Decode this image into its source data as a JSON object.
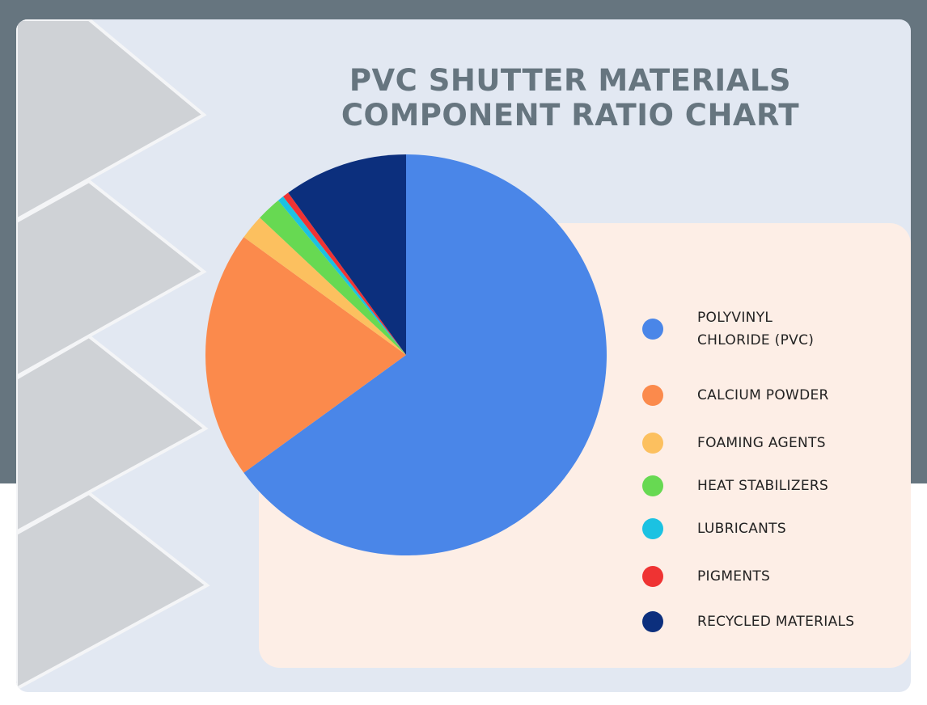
{
  "title": "PVC SHUTTER MATERIALS\nCOMPONENT RATIO CHART",
  "colors": {
    "frame": "#66757f",
    "card": "#e2e8f2",
    "panel": "#fdeee6",
    "title": "#66757f"
  },
  "chart_data": {
    "type": "pie",
    "title": "PVC SHUTTER MATERIALS COMPONENT RATIO CHART",
    "legend_position": "right",
    "slices": [
      {
        "label": "POLYVINYL\nCHLORIDE (PVC)",
        "value": 65,
        "color": "#4a86e8"
      },
      {
        "label": "CALCIUM POWDER",
        "value": 20,
        "color": "#fb8a4c"
      },
      {
        "label": "FOAMING AGENTS",
        "value": 2,
        "color": "#fcc05f"
      },
      {
        "label": "HEAT STABILIZERS",
        "value": 2,
        "color": "#67d952"
      },
      {
        "label": "LUBRICANTS",
        "value": 0.5,
        "color": "#1bc2e2"
      },
      {
        "label": "PIGMENTS",
        "value": 0.5,
        "color": "#ef3333"
      },
      {
        "label": "RECYCLED MATERIALS",
        "value": 10,
        "color": "#0c2f7d"
      }
    ]
  }
}
